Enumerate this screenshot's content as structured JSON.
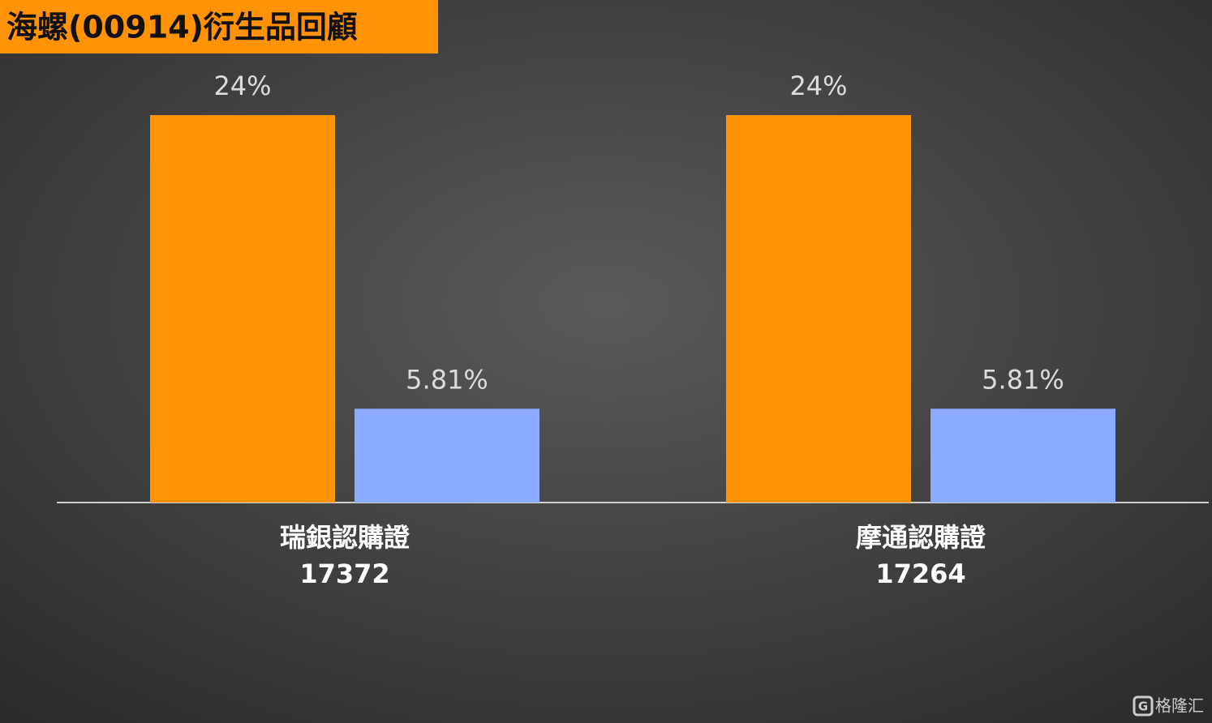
{
  "chart_data": {
    "type": "bar",
    "title": "海螺(00914)衍生品回顧",
    "categories": [
      "瑞銀認購證",
      "摩通認購證"
    ],
    "category_codes": [
      "17372",
      "17264"
    ],
    "series": [
      {
        "color": "#ff9205",
        "values": [
          24,
          24
        ],
        "value_labels": [
          "24%",
          "24%"
        ]
      },
      {
        "color": "#8aabff",
        "values": [
          5.81,
          5.81
        ],
        "value_labels": [
          "5.81%",
          "5.81%"
        ]
      }
    ],
    "watermark": "格隆汇"
  }
}
